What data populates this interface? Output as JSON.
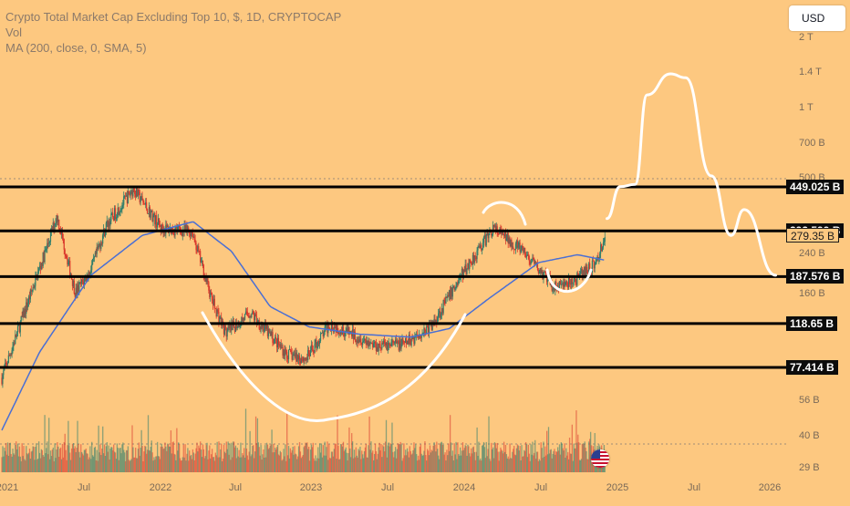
{
  "header": {
    "title": "Crypto Total Market Cap Excluding Top 10, $, 1D, CRYPTOCAP",
    "vol_label": "Vol",
    "ma_label": "MA (200, close, 0, SMA, 5)"
  },
  "currency_button": "USD",
  "price_tags": [
    {
      "label": "449.025 B",
      "style": "dark"
    },
    {
      "label": "292.599 B",
      "style": "dark"
    },
    {
      "label": "279.35 B",
      "style": "light"
    },
    {
      "label": "187.576 B",
      "style": "dark"
    },
    {
      "label": "118.65 B",
      "style": "dark"
    },
    {
      "label": "77.414 B",
      "style": "dark"
    }
  ],
  "colors": {
    "background": "#fdc880",
    "candle_up": "#2e7d6b",
    "candle_down": "#d9362b",
    "ma_line": "#4a6fd4",
    "levels": "#000000",
    "drawing": "#ffffff"
  },
  "chart_data": {
    "type": "candlestick",
    "title": "Crypto Total Market Cap Excluding Top 10, $, 1D, CRYPTOCAP",
    "scale": "log",
    "y_tick_labels": [
      "2 T",
      "1.4 T",
      "1 T",
      "700 B",
      "500 B",
      "240 B",
      "160 B"
    ],
    "volume_tick_labels": [
      "56 B",
      "40 B",
      "29 B"
    ],
    "x_tick_labels": [
      "2021",
      "Jul",
      "2022",
      "Jul",
      "2023",
      "Jul",
      "2024",
      "Jul",
      "2025",
      "Jul",
      "2026"
    ],
    "horizontal_levels": [
      449.025,
      292.599,
      187.576,
      118.65,
      77.414
    ],
    "last_price": 279.35,
    "price_series": [
      {
        "date": "2021-01-01",
        "value": 70
      },
      {
        "date": "2021-02-15",
        "value": 120
      },
      {
        "date": "2021-04-15",
        "value": 240
      },
      {
        "date": "2021-05-12",
        "value": 340
      },
      {
        "date": "2021-06-25",
        "value": 160
      },
      {
        "date": "2021-08-01",
        "value": 200
      },
      {
        "date": "2021-09-07",
        "value": 310
      },
      {
        "date": "2021-11-10",
        "value": 440
      },
      {
        "date": "2022-01-15",
        "value": 300
      },
      {
        "date": "2022-03-30",
        "value": 290
      },
      {
        "date": "2022-05-15",
        "value": 150
      },
      {
        "date": "2022-06-18",
        "value": 108
      },
      {
        "date": "2022-08-15",
        "value": 132
      },
      {
        "date": "2022-11-10",
        "value": 88
      },
      {
        "date": "2022-12-25",
        "value": 84
      },
      {
        "date": "2023-02-20",
        "value": 118
      },
      {
        "date": "2023-06-10",
        "value": 96
      },
      {
        "date": "2023-08-15",
        "value": 97
      },
      {
        "date": "2023-10-20",
        "value": 116
      },
      {
        "date": "2023-12-30",
        "value": 190
      },
      {
        "date": "2024-03-14",
        "value": 300
      },
      {
        "date": "2024-05-15",
        "value": 248
      },
      {
        "date": "2024-08-05",
        "value": 170
      },
      {
        "date": "2024-09-15",
        "value": 175
      },
      {
        "date": "2024-11-15",
        "value": 215
      },
      {
        "date": "2024-12-05",
        "value": 279
      }
    ],
    "ma_series": {
      "name": "MA (200, close, 0, SMA, 5)",
      "points": [
        {
          "date": "2021-01-01",
          "value": 42
        },
        {
          "date": "2021-04-01",
          "value": 90
        },
        {
          "date": "2021-08-01",
          "value": 190
        },
        {
          "date": "2021-12-01",
          "value": 280
        },
        {
          "date": "2022-04-01",
          "value": 320
        },
        {
          "date": "2022-07-01",
          "value": 240
        },
        {
          "date": "2022-10-01",
          "value": 140
        },
        {
          "date": "2023-01-01",
          "value": 115
        },
        {
          "date": "2023-05-01",
          "value": 107
        },
        {
          "date": "2023-09-01",
          "value": 104
        },
        {
          "date": "2023-12-01",
          "value": 113
        },
        {
          "date": "2024-03-01",
          "value": 150
        },
        {
          "date": "2024-07-01",
          "value": 215
        },
        {
          "date": "2024-10-01",
          "value": 232
        },
        {
          "date": "2024-12-05",
          "value": 220
        }
      ]
    },
    "projection": [
      {
        "date": "2024-12-10",
        "value": 330
      },
      {
        "date": "2025-01-10",
        "value": 450
      },
      {
        "date": "2025-02-15",
        "value": 460
      },
      {
        "date": "2025-03-15",
        "value": 1100
      },
      {
        "date": "2025-05-10",
        "value": 1350
      },
      {
        "date": "2025-06-15",
        "value": 1300
      },
      {
        "date": "2025-08-15",
        "value": 500
      },
      {
        "date": "2025-10-01",
        "value": 280
      },
      {
        "date": "2025-11-01",
        "value": 360
      },
      {
        "date": "2026-01-15",
        "value": 190
      }
    ]
  }
}
